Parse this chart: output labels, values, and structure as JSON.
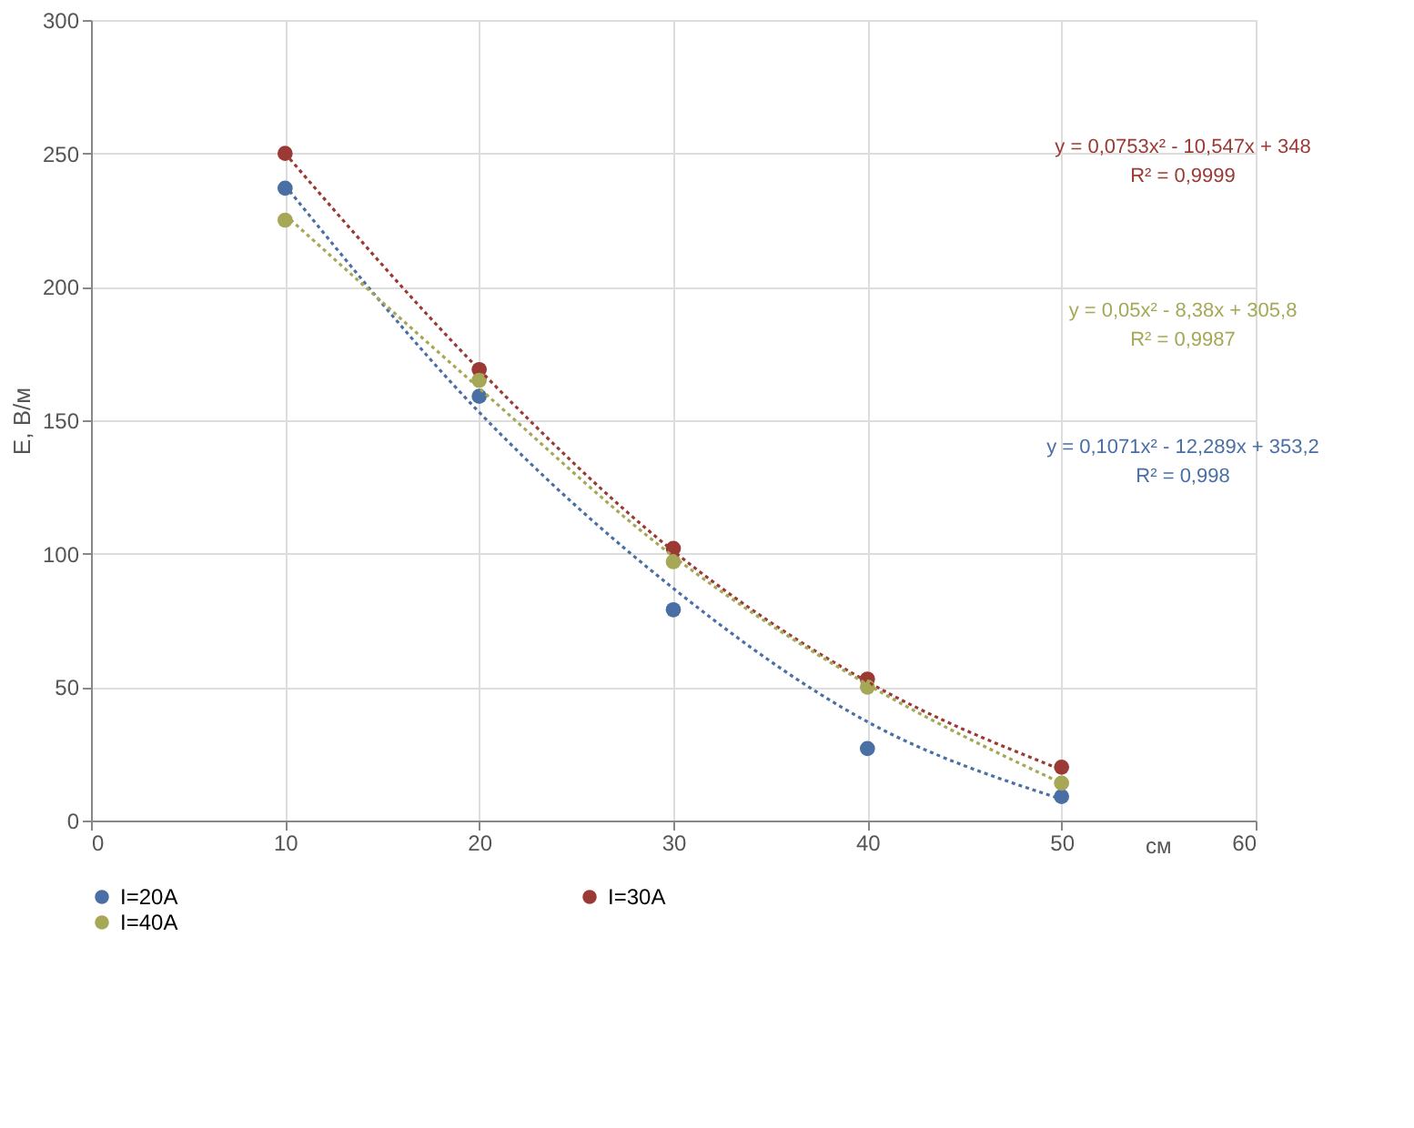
{
  "chart_data": {
    "type": "scatter",
    "xlabel": "см",
    "ylabel": "E, В/м",
    "x": [
      10,
      20,
      30,
      40,
      50
    ],
    "series": [
      {
        "name": "I=20A",
        "color": "#4a6fa5",
        "values": [
          237,
          159,
          79,
          27,
          9
        ]
      },
      {
        "name": "I=30A",
        "color": "#9b3a35",
        "values": [
          250,
          169,
          102,
          53,
          20
        ]
      },
      {
        "name": "I=40A",
        "color": "#a6a857",
        "values": [
          225,
          165,
          97,
          50,
          14
        ]
      },
      {
        "type": "line",
        "color": "#4a6fa5",
        "line_style": "dotted",
        "marker": "none",
        "x": [
          10,
          20,
          30,
          40,
          50
        ],
        "values": [
          238,
          153,
          87,
          37,
          8
        ]
      },
      {
        "type": "line",
        "color": "#9b3a35",
        "line_style": "dotted",
        "marker": "none",
        "x": [
          10,
          20,
          30,
          40,
          50
        ],
        "values": [
          250,
          169,
          101,
          52,
          19
        ]
      },
      {
        "type": "line",
        "color": "#a6a857",
        "line_style": "dotted",
        "marker": "none",
        "x": [
          10,
          20,
          30,
          40,
          50
        ],
        "values": [
          227,
          162,
          99,
          51,
          14
        ]
      }
    ],
    "annotations": [
      "y = 0,0753x² - 10,547x + 348",
      "R² = 0,9999",
      "y = 0,05x² - 8,38x + 305,8",
      "R² = 0,9987",
      "y = 0,1071x² - 12,289x + 353,2",
      "R² = 0,998"
    ],
    "xlim": [
      0,
      60
    ],
    "xticks": [
      0,
      10,
      20,
      30,
      40,
      50,
      60
    ],
    "ylim": [
      0,
      300
    ],
    "yticks": [
      0,
      50,
      100,
      150,
      200,
      250,
      300
    ],
    "grid": true,
    "legend": "bottom",
    "marker": "circle"
  }
}
